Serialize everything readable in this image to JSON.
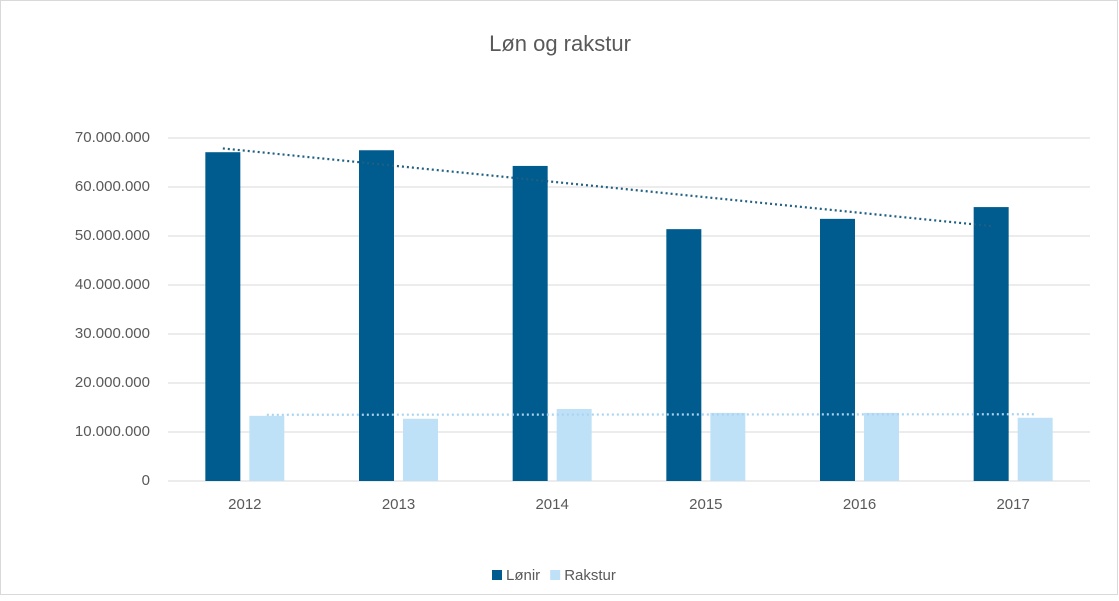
{
  "chart_data": {
    "type": "bar",
    "title": "Løn og rakstur",
    "categories": [
      "2012",
      "2013",
      "2014",
      "2015",
      "2016",
      "2017"
    ],
    "series": [
      {
        "name": "Lønir",
        "color": "#005b8f",
        "values": [
          67100000,
          67500000,
          64300000,
          51400000,
          53500000,
          55900000
        ]
      },
      {
        "name": "Rakstur",
        "color": "#bfe1f8",
        "values": [
          13300000,
          12700000,
          14700000,
          13900000,
          13900000,
          12900000
        ]
      }
    ],
    "ylim": [
      0,
      70000000
    ],
    "yticks": [
      0,
      {
        "value": 10000000,
        "label": "10.000.000"
      },
      {
        "value": 20000000,
        "label": "20.000.000"
      },
      {
        "value": 30000000,
        "label": "30.000.000"
      },
      {
        "value": 40000000,
        "label": "40.000.000"
      },
      {
        "value": 50000000,
        "label": "50.000.000"
      },
      {
        "value": 60000000,
        "label": "60.000.000"
      },
      {
        "value": 70000000,
        "label": "70.000.000"
      }
    ],
    "grid": true,
    "trendline": true,
    "legend": "bottom"
  }
}
